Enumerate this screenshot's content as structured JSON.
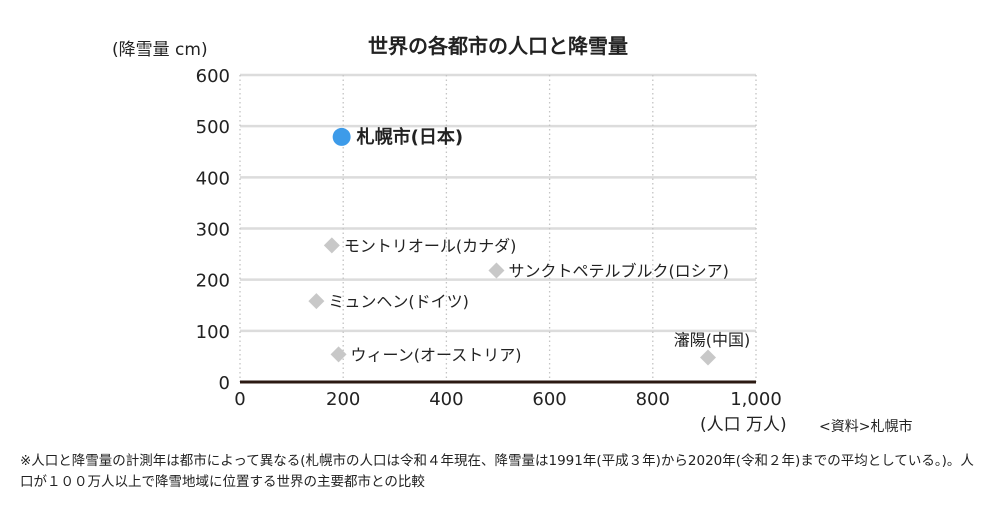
{
  "chart_data": {
    "type": "scatter",
    "title": "世界の各都市の人口と降雪量",
    "ylabel": "(降雪量 cm)",
    "xlabel": "(人口 万人)",
    "xlim": [
      0,
      1000
    ],
    "ylim": [
      0,
      600
    ],
    "x_ticks": [
      0,
      200,
      400,
      600,
      800,
      1000
    ],
    "x_tick_labels": [
      "0",
      "200",
      "400",
      "600",
      "800",
      "1,000"
    ],
    "y_ticks": [
      0,
      100,
      200,
      300,
      400,
      500,
      600
    ],
    "y_tick_labels": [
      "0",
      "100",
      "200",
      "300",
      "400",
      "500",
      "600"
    ],
    "grid": true,
    "points": [
      {
        "label": "札幌市(日本)",
        "x": 197,
        "y": 479,
        "marker": "circle",
        "highlight": true,
        "color": "#3d9be9"
      },
      {
        "label": "モントリオール(カナダ)",
        "x": 178,
        "y": 267,
        "marker": "diamond",
        "color": "#c8c8c8"
      },
      {
        "label": "サンクトペテルブルク(ロシア)",
        "x": 497,
        "y": 218,
        "marker": "diamond",
        "color": "#c8c8c8"
      },
      {
        "label": "ミュンヘン(ドイツ)",
        "x": 148,
        "y": 158,
        "marker": "diamond",
        "color": "#c8c8c8"
      },
      {
        "label": "ウィーン(オーストリア)",
        "x": 191,
        "y": 54,
        "marker": "diamond",
        "color": "#c8c8c8"
      },
      {
        "label": "瀋陽(中国)",
        "x": 907,
        "y": 48,
        "marker": "diamond",
        "color": "#c8c8c8"
      }
    ]
  },
  "source": "<資料>札幌市",
  "note": "※人口と降雪量の計測年は都市によって異なる(札幌市の人口は令和４年現在、降雪量は1991年(平成３年)から2020年(令和２年)までの平均としている。)。人口が１００万人以上で降雪地域に位置する世界の主要都市との比較"
}
